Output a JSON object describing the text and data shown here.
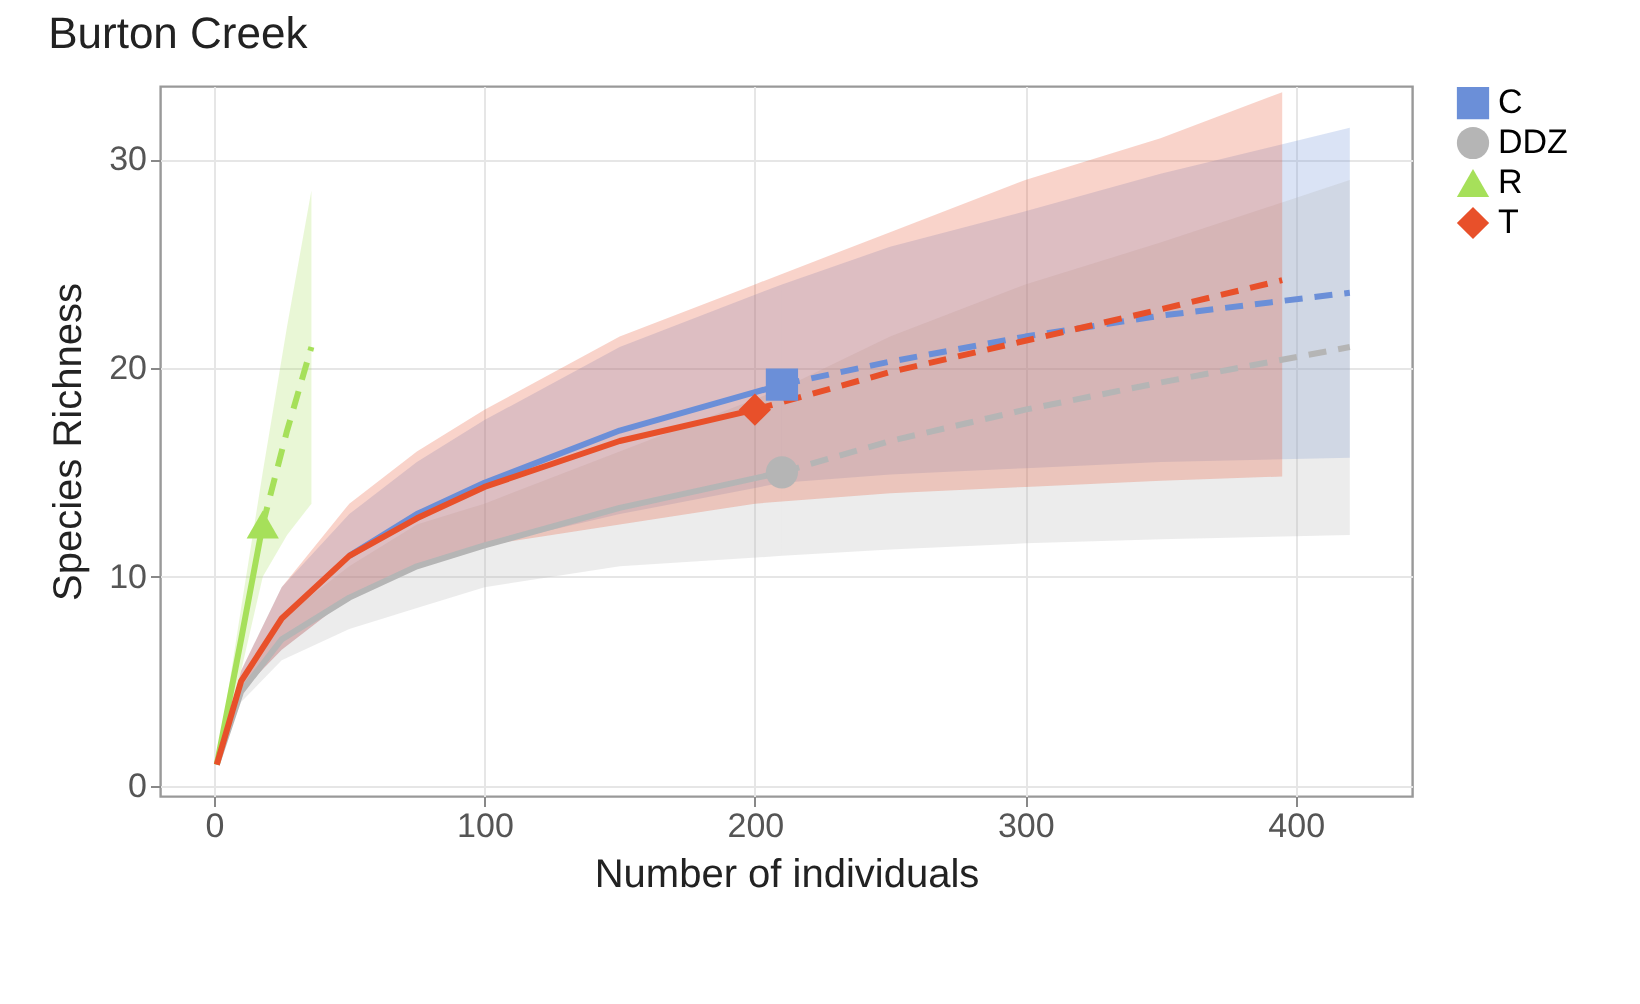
{
  "chart_data": {
    "type": "line",
    "title": "Burton Creek",
    "xlabel": "Number of individuals",
    "ylabel": "Species Richness",
    "xlim": [
      -20,
      443
    ],
    "ylim": [
      -0.5,
      33.5
    ],
    "xticks": [
      0,
      100,
      200,
      300,
      400
    ],
    "yticks": [
      0,
      10,
      20,
      30
    ],
    "grid": true,
    "legend": "right",
    "series": [
      {
        "color": "#6b8fd8",
        "line_style": "solid",
        "x": [
          1,
          10,
          25,
          50,
          75,
          100,
          150,
          210
        ],
        "values": [
          null,
          null,
          null,
          11,
          13,
          14.5,
          17,
          19.2
        ],
        "lower": [
          1,
          4.5,
          6.5,
          9,
          10.5,
          11.5,
          13,
          14.5
        ],
        "upper": [
          1,
          5.5,
          9.5,
          13,
          15.5,
          17.5,
          21,
          24
        ]
      },
      {
        "color": "#6b8fd8",
        "line_style": "dashed",
        "x": [
          210,
          250,
          300,
          350,
          420
        ],
        "values": [
          19.2,
          20.3,
          21.5,
          22.5,
          23.6
        ],
        "lower": [
          14.5,
          14.9,
          15.2,
          15.5,
          15.7
        ],
        "upper": [
          24,
          25.8,
          27.5,
          29.3,
          31.5
        ]
      },
      {
        "color": "#b5b5b5",
        "line_style": "solid",
        "x": [
          1,
          10,
          25,
          50,
          75,
          100,
          150,
          210
        ],
        "values": [
          1,
          4.5,
          7,
          9,
          10.5,
          11.5,
          13.3,
          15
        ],
        "lower": [
          1,
          4,
          6,
          7.5,
          8.5,
          9.5,
          10.5,
          11
        ],
        "upper": [
          1,
          5,
          8,
          10.5,
          12.5,
          13.5,
          16,
          19
        ]
      },
      {
        "color": "#b5b5b5",
        "line_style": "dashed",
        "x": [
          210,
          250,
          300,
          350,
          420
        ],
        "values": [
          15,
          16.5,
          18,
          19.3,
          21
        ],
        "lower": [
          11,
          11.3,
          11.6,
          11.8,
          12
        ],
        "upper": [
          19,
          21.5,
          24,
          26,
          29
        ]
      },
      {
        "color": "#a6e05a",
        "line_style": "solid",
        "x": [
          1,
          10,
          18
        ],
        "values": [
          1,
          7,
          12.5
        ],
        "lower": [
          1,
          5.5,
          10
        ],
        "upper": [
          1,
          8.5,
          15
        ]
      },
      {
        "color": "#a6e05a",
        "line_style": "dashed",
        "x": [
          18,
          27,
          36
        ],
        "values": [
          12.5,
          17,
          21
        ],
        "lower": [
          10,
          12,
          13.5
        ],
        "upper": [
          15,
          22,
          28.5
        ]
      },
      {
        "color": "#e8502a",
        "line_style": "solid",
        "x": [
          1,
          10,
          25,
          50,
          75,
          100,
          150,
          200
        ],
        "values": [
          1,
          5,
          8,
          11,
          12.8,
          14.3,
          16.5,
          18
        ],
        "lower": [
          1,
          4.5,
          6.5,
          9,
          10.5,
          11.5,
          12.5,
          13.5
        ],
        "upper": [
          1,
          5.5,
          9.5,
          13.5,
          16,
          18,
          21.5,
          24
        ]
      },
      {
        "color": "#e8502a",
        "line_style": "dashed",
        "x": [
          200,
          250,
          300,
          350,
          395
        ],
        "values": [
          18,
          19.8,
          21.3,
          22.8,
          24.2
        ],
        "lower": [
          13.5,
          14,
          14.3,
          14.6,
          14.8
        ],
        "upper": [
          24,
          26.5,
          29,
          31,
          33.2
        ]
      },
      {
        "type": "scatter",
        "name": "C",
        "color": "#6b8fd8",
        "marker": "square",
        "x": [
          210
        ],
        "values": [
          19.2
        ]
      },
      {
        "type": "scatter",
        "name": "DDZ",
        "color": "#b5b5b5",
        "marker": "circle",
        "x": [
          210
        ],
        "values": [
          15
        ]
      },
      {
        "type": "scatter",
        "name": "R",
        "color": "#a6e05a",
        "marker": "triangle",
        "x": [
          18
        ],
        "values": [
          12.5
        ]
      },
      {
        "type": "scatter",
        "name": "T",
        "color": "#e8502a",
        "marker": "diamond",
        "x": [
          200
        ],
        "values": [
          18
        ]
      }
    ]
  }
}
